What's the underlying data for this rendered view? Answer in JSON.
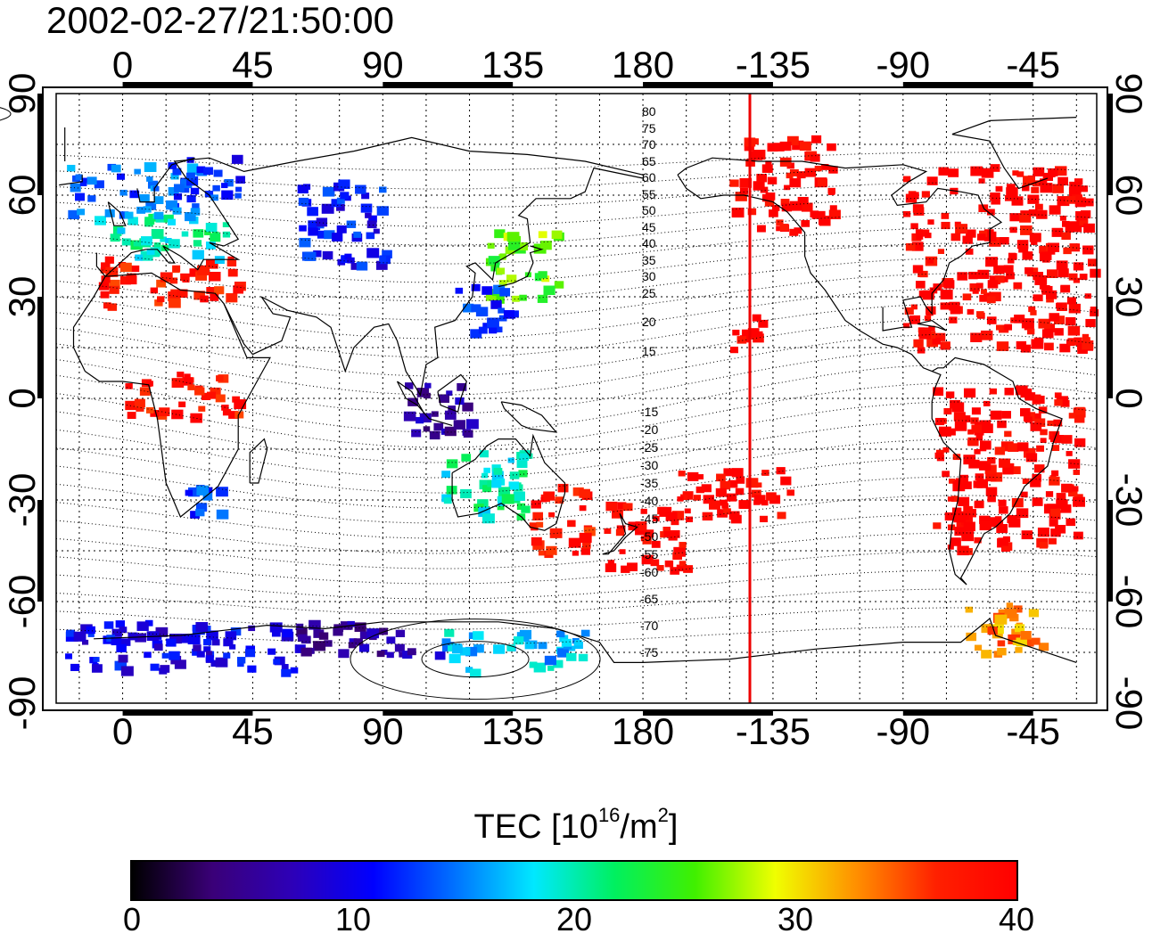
{
  "timestamp": "2002-02-27/21:50:00",
  "x_axis": {
    "top_ticks": [
      "0",
      "45",
      "90",
      "135",
      "180",
      "-135",
      "-90",
      "-45"
    ],
    "bottom_ticks": [
      "0",
      "45",
      "90",
      "135",
      "180",
      "-135",
      "-90",
      "-45"
    ],
    "tick_longitudes": [
      0,
      45,
      90,
      135,
      180,
      225,
      270,
      315
    ]
  },
  "y_axis": {
    "left_ticks": [
      "90",
      "60",
      "30",
      "0",
      "-30",
      "-60",
      "-90"
    ],
    "right_ticks": [
      "90",
      "60",
      "30",
      "0",
      "-30",
      "-60",
      "-90"
    ],
    "tick_latitudes": [
      90,
      60,
      30,
      0,
      -30,
      -60,
      -90
    ]
  },
  "map": {
    "lon_range": [
      -23,
      337
    ],
    "lat_range": [
      -90,
      90
    ],
    "grid_spacing_deg": 15,
    "terminator_longitude": -143,
    "terminator_color": "#ee0000",
    "magnetic_latitude_labels_north": [
      "80",
      "75",
      "70",
      "65",
      "60",
      "55",
      "50",
      "45",
      "40",
      "35",
      "30",
      "25",
      "20",
      "15"
    ],
    "magnetic_latitude_labels_south": [
      "-15",
      "-20",
      "-25",
      "-30",
      "-35",
      "-40",
      "-45",
      "-50",
      "-55",
      "-60",
      "-65",
      "-70",
      "-75"
    ]
  },
  "colorbar": {
    "title": "TEC  [10",
    "title_exp": "16",
    "title_mid": "/m",
    "title_exp2": "2",
    "title_end": "]",
    "min": 0,
    "max": 40,
    "tick_labels": [
      "0",
      "10",
      "20",
      "30",
      "40"
    ],
    "tick_values": [
      0,
      10,
      20,
      30,
      40
    ],
    "colors": [
      "#000000",
      "#3a0078",
      "#2d00b8",
      "#0000ff",
      "#0070ff",
      "#00e8ff",
      "#00f060",
      "#40f000",
      "#f0ff00",
      "#ff9000",
      "#ff2000",
      "#ff0000"
    ]
  },
  "chart_data": {
    "type": "heatmap",
    "title": "2002-02-27/21:50:00",
    "xlabel": "",
    "ylabel": "",
    "value_label": "TEC [10^16/m^2]",
    "xlim": [
      -23,
      337
    ],
    "ylim": [
      -90,
      90
    ],
    "value_range": [
      0,
      40
    ],
    "regions": [
      {
        "lon": [
          270,
          335
        ],
        "lat": [
          15,
          70
        ],
        "tec": 40
      },
      {
        "lon": [
          210,
          245
        ],
        "lat": [
          50,
          78
        ],
        "tec": 40
      },
      {
        "lon": [
          280,
          330
        ],
        "lat": [
          -45,
          5
        ],
        "tec": 40
      },
      {
        "lon": [
          0,
          40
        ],
        "lat": [
          -5,
          8
        ],
        "tec": 38
      },
      {
        "lon": [
          -10,
          40
        ],
        "lat": [
          28,
          42
        ],
        "tec": 38
      },
      {
        "lon": [
          -10,
          35
        ],
        "lat": [
          42,
          55
        ],
        "tec": 20
      },
      {
        "lon": [
          -20,
          25
        ],
        "lat": [
          55,
          70
        ],
        "tec": 14
      },
      {
        "lon": [
          15,
          40
        ],
        "lat": [
          60,
          72
        ],
        "tec": 12
      },
      {
        "lon": [
          125,
          150
        ],
        "lat": [
          30,
          50
        ],
        "tec": 26
      },
      {
        "lon": [
          115,
          135
        ],
        "lat": [
          20,
          35
        ],
        "tec": 12
      },
      {
        "lon": [
          165,
          195
        ],
        "lat": [
          -50,
          -30
        ],
        "tec": 40
      },
      {
        "lon": [
          140,
          160
        ],
        "lat": [
          -45,
          -25
        ],
        "tec": 38
      },
      {
        "lon": [
          110,
          140
        ],
        "lat": [
          -35,
          -15
        ],
        "tec": 20
      },
      {
        "lon": [
          95,
          120
        ],
        "lat": [
          -10,
          5
        ],
        "tec": 6
      },
      {
        "lon": [
          20,
          35
        ],
        "lat": [
          -35,
          -25
        ],
        "tec": 13
      },
      {
        "lon": [
          -20,
          60
        ],
        "lat": [
          -80,
          -65
        ],
        "tec": 10
      },
      {
        "lon": [
          60,
          110
        ],
        "lat": [
          -75,
          -65
        ],
        "tec": 6
      },
      {
        "lon": [
          110,
          160
        ],
        "lat": [
          -80,
          -68
        ],
        "tec": 17
      },
      {
        "lon": [
          290,
          320
        ],
        "lat": [
          -75,
          -60
        ],
        "tec": 33
      },
      {
        "lon": [
          60,
          90
        ],
        "lat": [
          40,
          65
        ],
        "tec": 11
      },
      {
        "lon": [
          185,
          230
        ],
        "lat": [
          -35,
          -20
        ],
        "tec": 40
      },
      {
        "lon": [
          210,
          225
        ],
        "lat": [
          15,
          25
        ],
        "tec": 40
      }
    ]
  }
}
